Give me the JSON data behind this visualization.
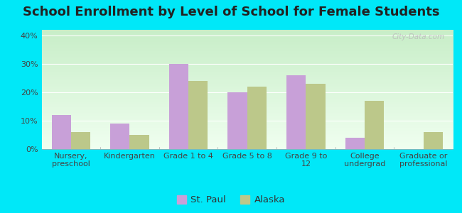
{
  "title": "School Enrollment by Level of School for Female Students",
  "categories": [
    "Nursery,\npreschool",
    "Kindergarten",
    "Grade 1 to 4",
    "Grade 5 to 8",
    "Grade 9 to\n12",
    "College\nundergrad",
    "Graduate or\nprofessional"
  ],
  "st_paul": [
    12,
    9,
    30,
    20,
    26,
    4,
    0
  ],
  "alaska": [
    6,
    5,
    24,
    22,
    23,
    17,
    6
  ],
  "st_paul_color": "#c8a0d8",
  "alaska_color": "#bcc88a",
  "background_outer": "#00e8f8",
  "background_top_color": "#c8eec8",
  "background_bottom_color": "#f0fff0",
  "grid_color": "#ffffff",
  "ylabel_ticks": [
    "0%",
    "10%",
    "20%",
    "30%",
    "40%"
  ],
  "yticks": [
    0,
    10,
    20,
    30,
    40
  ],
  "ylim": [
    0,
    42
  ],
  "watermark": "City-Data.com",
  "legend_labels": [
    "St. Paul",
    "Alaska"
  ],
  "title_fontsize": 13,
  "tick_fontsize": 8,
  "legend_fontsize": 9.5
}
